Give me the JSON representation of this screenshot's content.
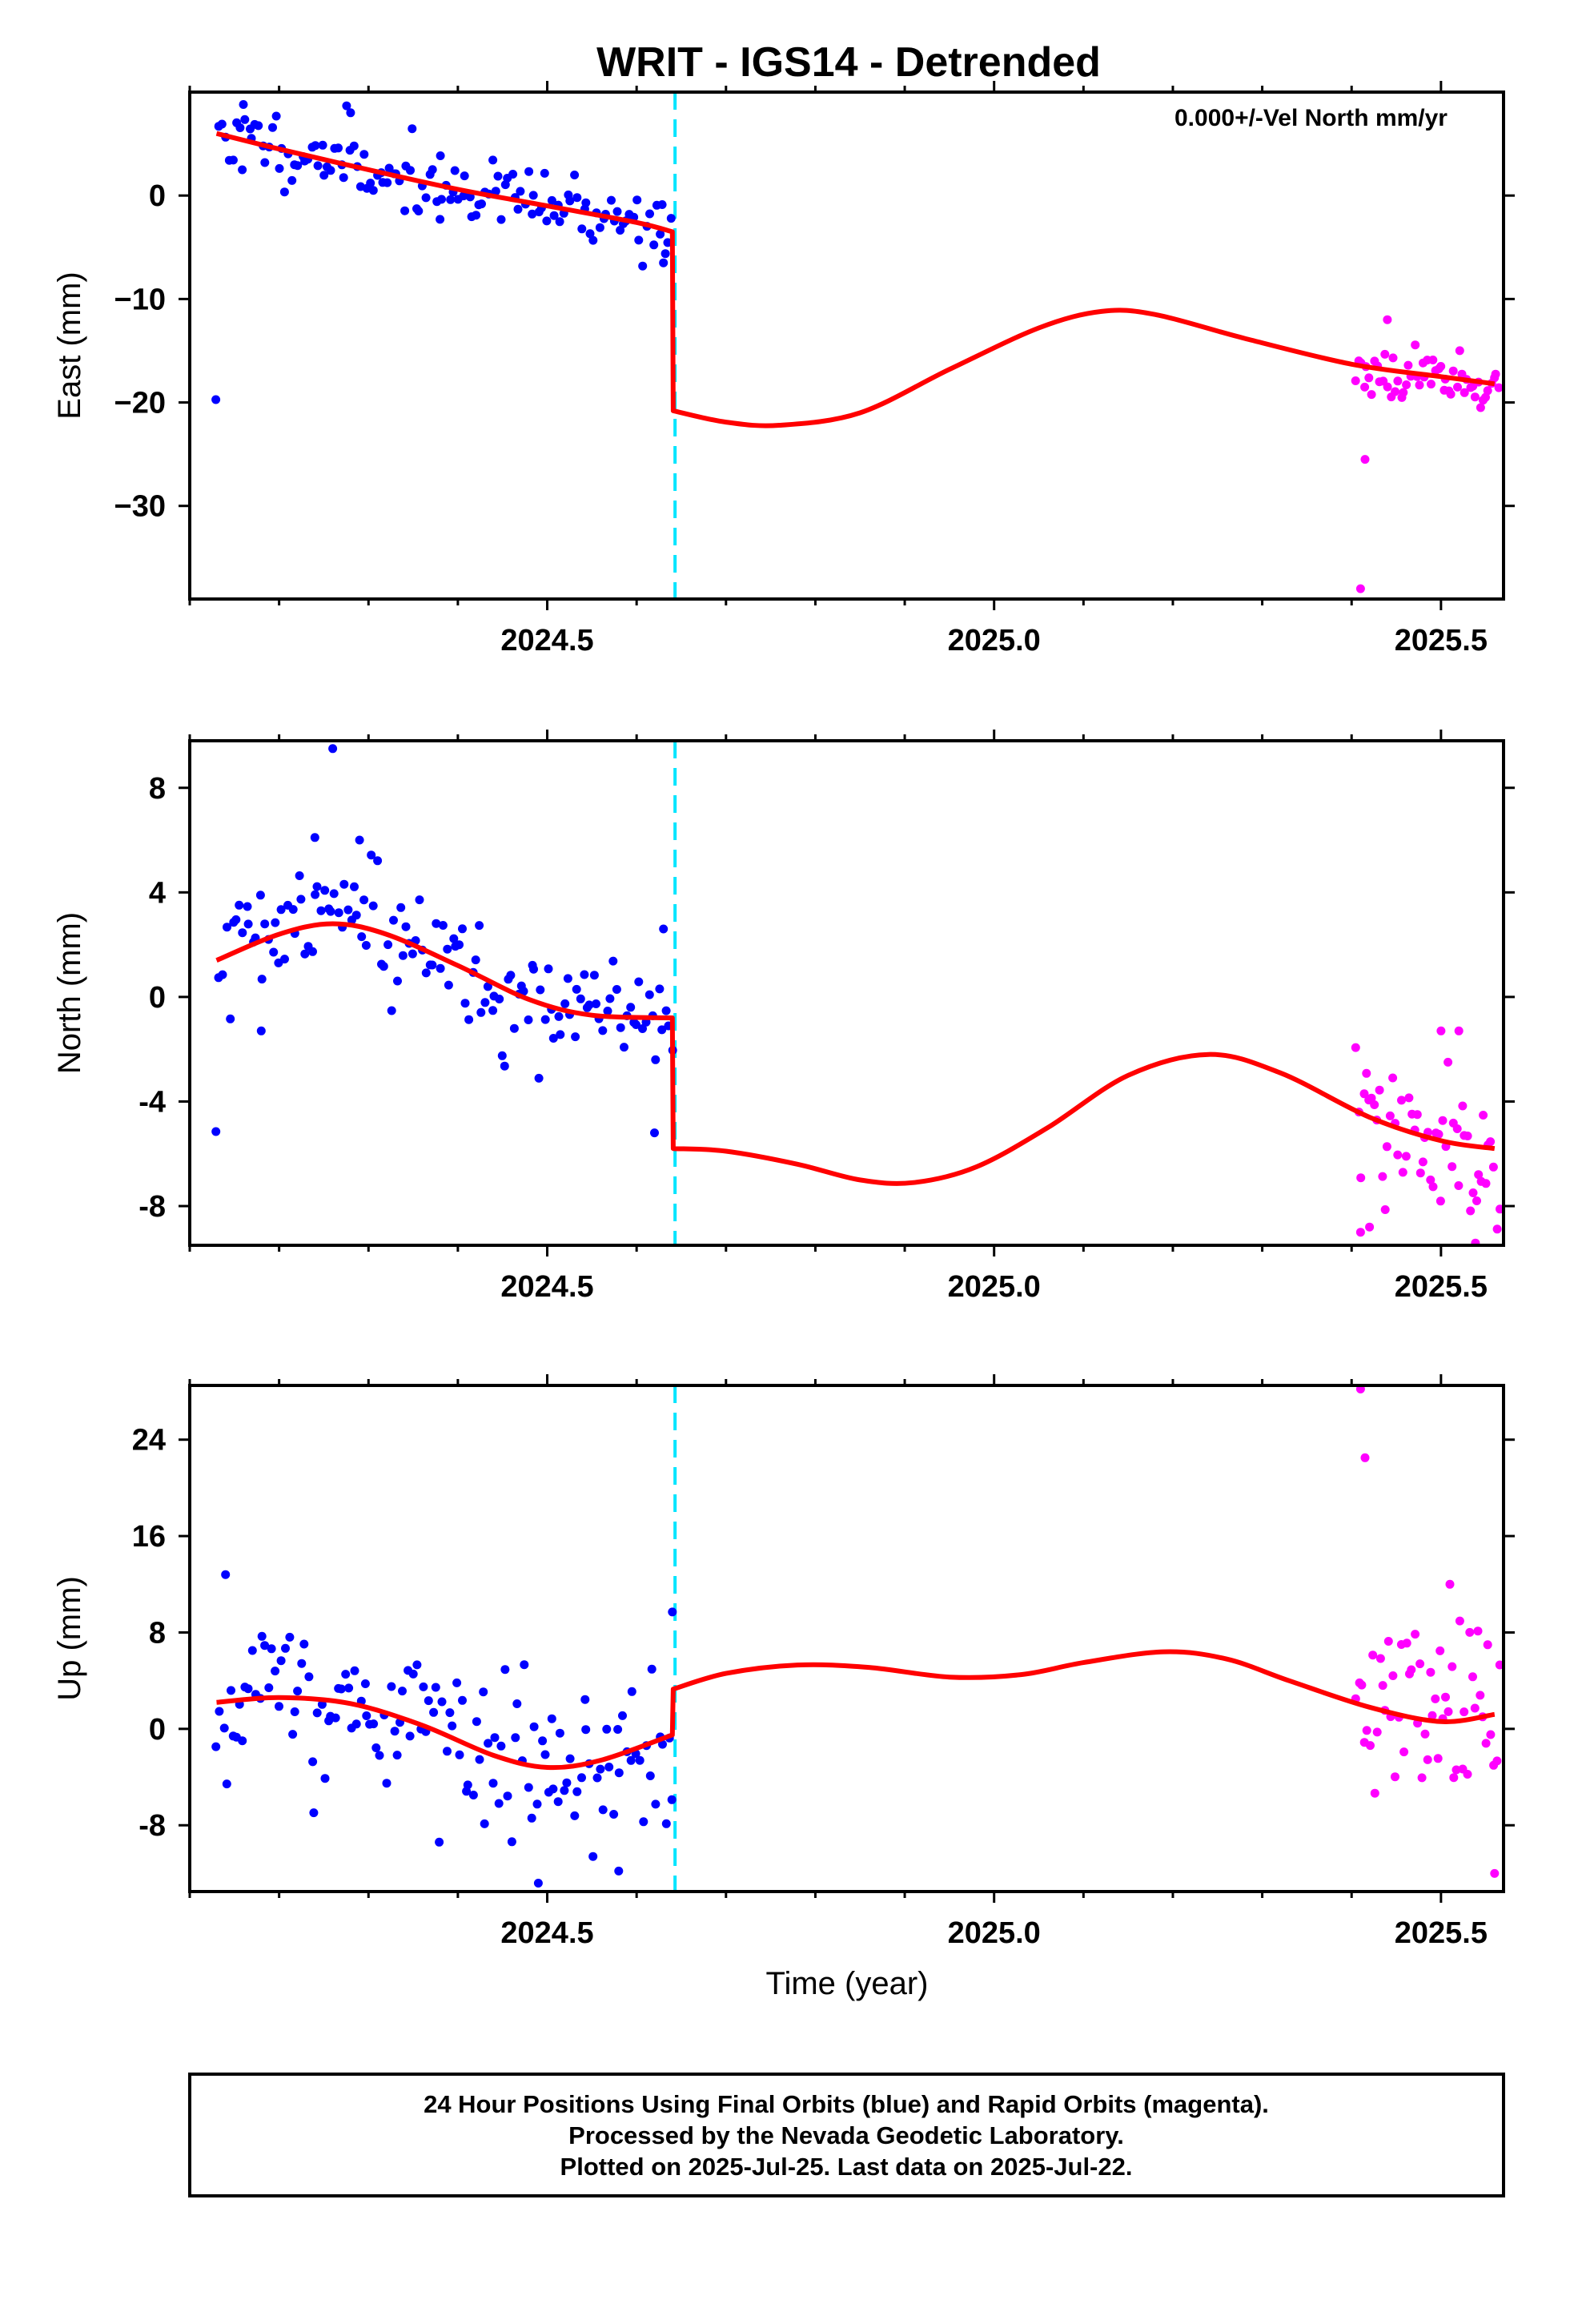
{
  "colors": {
    "final": "#0000ff",
    "rapid": "#ff00ff",
    "model": "#ff0000",
    "event": "#00e5ff",
    "frame": "#000000"
  },
  "chart_data": {
    "type": "scatter",
    "title": "WRIT - IGS14 - Detrended",
    "xlabel": "Time (year)",
    "xlim": [
      2024.1,
      2025.57
    ],
    "x_ticks": [
      2024.5,
      2025.0,
      2025.5
    ],
    "x_tick_labels": [
      "2024.5",
      "2025.0",
      "2025.5"
    ],
    "event_line_x": 2024.643,
    "footer": [
      "24 Hour Positions Using Final Orbits (blue) and Rapid Orbits (magenta).",
      "Processed by the Nevada Geodetic Laboratory.",
      "Plotted on 2025-Jul-25. Last data on 2025-Jul-22."
    ],
    "panels": [
      {
        "ylabel": "East (mm)",
        "annotation": "0.000+/-Vel North mm/yr",
        "ylim": [
          -39,
          10
        ],
        "y_ticks": [
          0,
          -10,
          -20,
          -30
        ],
        "y_tick_labels": [
          "0",
          "−10",
          "−20",
          "−30"
        ],
        "final": {
          "x_start": 2024.13,
          "x_end": 2024.64,
          "count": 140,
          "model_start": 6.0,
          "model_end": -3.5,
          "noise": 1.6,
          "seed": 11,
          "outliers": [
            [
              2024.16,
              8.8
            ],
            [
              2024.28,
              8.0
            ],
            [
              2024.38,
              -2.3
            ],
            [
              2024.63,
              -6.5
            ]
          ]
        },
        "rapid": {
          "x_start": 2025.405,
          "x_end": 2025.565,
          "count": 55,
          "noise": 1.2,
          "seed": 23,
          "outliers": [
            [
              2025.415,
              -25.5
            ],
            [
              2025.41,
              -38.0
            ],
            [
              2025.44,
              -12.0
            ]
          ]
        },
        "model": [
          [
            2024.13,
            6.0
          ],
          [
            2024.2,
            4.5
          ],
          [
            2024.3,
            2.5
          ],
          [
            2024.4,
            0.6
          ],
          [
            2024.5,
            -1.0
          ],
          [
            2024.6,
            -2.6
          ],
          [
            2024.64,
            -3.5
          ],
          [
            2024.641,
            -20.8
          ],
          [
            2024.7,
            -21.9
          ],
          [
            2024.76,
            -22.2
          ],
          [
            2024.85,
            -21.0
          ],
          [
            2024.95,
            -16.8
          ],
          [
            2025.05,
            -12.8
          ],
          [
            2025.12,
            -11.2
          ],
          [
            2025.18,
            -11.5
          ],
          [
            2025.28,
            -13.8
          ],
          [
            2025.4,
            -16.3
          ],
          [
            2025.5,
            -17.5
          ],
          [
            2025.56,
            -18.2
          ]
        ]
      },
      {
        "ylabel": "North (mm)",
        "annotation": "",
        "ylim": [
          -9.5,
          9.8
        ],
        "y_ticks": [
          8,
          4,
          0,
          -4,
          -8
        ],
        "y_tick_labels": [
          "8",
          "4",
          "0",
          "-4",
          "-8"
        ],
        "final": {
          "x_start": 2024.13,
          "x_end": 2024.64,
          "count": 140,
          "model_start": 1.5,
          "model_end": -0.8,
          "noise": 1.2,
          "seed": 37,
          "outliers": [
            [
              2024.26,
              9.5
            ],
            [
              2024.24,
              6.1
            ],
            [
              2024.29,
              6.0
            ],
            [
              2024.62,
              -5.2
            ],
            [
              2024.63,
              2.6
            ],
            [
              2024.18,
              -1.3
            ]
          ]
        },
        "rapid": {
          "x_start": 2025.405,
          "x_end": 2025.565,
          "count": 55,
          "noise": 1.4,
          "seed": 53,
          "outliers": [
            [
              2025.41,
              -9.0
            ],
            [
              2025.42,
              -8.8
            ],
            [
              2025.5,
              -1.3
            ],
            [
              2025.52,
              -1.3
            ],
            [
              2025.54,
              -7.8
            ]
          ]
        },
        "model": [
          [
            2024.13,
            1.4
          ],
          [
            2024.2,
            2.4
          ],
          [
            2024.26,
            2.8
          ],
          [
            2024.32,
            2.4
          ],
          [
            2024.4,
            1.2
          ],
          [
            2024.48,
            -0.1
          ],
          [
            2024.55,
            -0.7
          ],
          [
            2024.64,
            -0.8
          ],
          [
            2024.641,
            -5.8
          ],
          [
            2024.7,
            -5.9
          ],
          [
            2024.78,
            -6.4
          ],
          [
            2024.85,
            -7.0
          ],
          [
            2024.91,
            -7.1
          ],
          [
            2024.98,
            -6.5
          ],
          [
            2025.06,
            -5.0
          ],
          [
            2025.15,
            -3.0
          ],
          [
            2025.24,
            -2.2
          ],
          [
            2025.32,
            -2.9
          ],
          [
            2025.42,
            -4.6
          ],
          [
            2025.5,
            -5.5
          ],
          [
            2025.56,
            -5.8
          ]
        ]
      },
      {
        "ylabel": "Up (mm)",
        "annotation": "",
        "ylim": [
          -13.5,
          28.5
        ],
        "y_ticks": [
          24,
          16,
          8,
          0,
          -8
        ],
        "y_tick_labels": [
          "24",
          "16",
          "8",
          "0",
          "-8"
        ],
        "final": {
          "x_start": 2024.13,
          "x_end": 2024.64,
          "count": 140,
          "model_start": 2.2,
          "model_end": -0.5,
          "noise": 3.6,
          "seed": 71,
          "outliers": [
            [
              2024.14,
              12.8
            ],
            [
              2024.64,
              9.7
            ],
            [
              2024.49,
              -12.8
            ],
            [
              2024.58,
              -11.8
            ]
          ]
        },
        "rapid": {
          "x_start": 2025.405,
          "x_end": 2025.565,
          "count": 55,
          "noise": 4.2,
          "seed": 89,
          "outliers": [
            [
              2025.41,
              28.2
            ],
            [
              2025.415,
              22.5
            ],
            [
              2025.56,
              -12.0
            ],
            [
              2025.51,
              12.0
            ]
          ]
        },
        "model": [
          [
            2024.13,
            2.2
          ],
          [
            2024.2,
            2.6
          ],
          [
            2024.28,
            2.1
          ],
          [
            2024.36,
            0.3
          ],
          [
            2024.44,
            -2.2
          ],
          [
            2024.5,
            -3.2
          ],
          [
            2024.56,
            -2.6
          ],
          [
            2024.64,
            -0.5
          ],
          [
            2024.641,
            3.3
          ],
          [
            2024.7,
            4.6
          ],
          [
            2024.78,
            5.3
          ],
          [
            2024.86,
            5.1
          ],
          [
            2024.95,
            4.3
          ],
          [
            2025.03,
            4.5
          ],
          [
            2025.1,
            5.5
          ],
          [
            2025.19,
            6.4
          ],
          [
            2025.26,
            5.8
          ],
          [
            2025.33,
            4.0
          ],
          [
            2025.42,
            1.8
          ],
          [
            2025.5,
            0.6
          ],
          [
            2025.56,
            1.2
          ]
        ]
      }
    ]
  }
}
